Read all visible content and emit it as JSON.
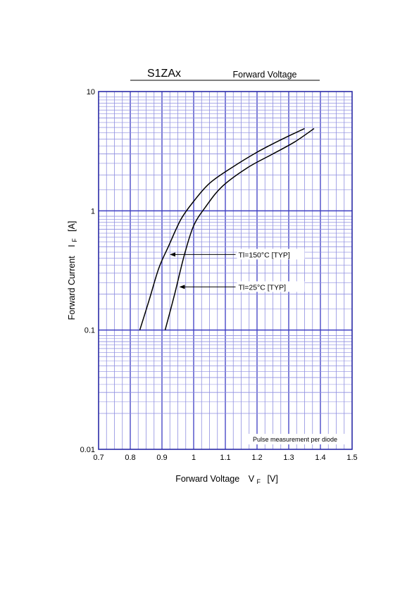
{
  "chart_data": {
    "type": "line",
    "title": "S1ZAx",
    "subtitle": "Forward Voltage",
    "xlabel": "Forward Voltage",
    "xlabel_symbol": "V",
    "xlabel_sub": "F",
    "xlabel_unit": "[V]",
    "ylabel": "Forward Current",
    "ylabel_symbol": "I",
    "ylabel_sub": "F",
    "ylabel_unit": "[A]",
    "xlim": [
      0.7,
      1.5
    ],
    "ylim": [
      0.01,
      10
    ],
    "yscale": "log",
    "grid": true,
    "x_ticks": [
      "0.7",
      "0.8",
      "0.9",
      "1",
      "1.1",
      "1.2",
      "1.3",
      "1.4",
      "1.5"
    ],
    "y_ticks": [
      "0.01",
      "0.1",
      "1",
      "10"
    ],
    "note": "Pulse measurement per diode",
    "series": [
      {
        "name": "Tl=150°C [TYP]",
        "points": [
          [
            0.83,
            0.1
          ],
          [
            0.86,
            0.18
          ],
          [
            0.89,
            0.33
          ],
          [
            0.92,
            0.5
          ],
          [
            0.96,
            0.85
          ],
          [
            1.0,
            1.2
          ],
          [
            1.05,
            1.7
          ],
          [
            1.12,
            2.3
          ],
          [
            1.2,
            3.1
          ],
          [
            1.28,
            4.0
          ],
          [
            1.35,
            4.9
          ]
        ]
      },
      {
        "name": "Tl=25°C [TYP]",
        "points": [
          [
            0.91,
            0.1
          ],
          [
            0.94,
            0.2
          ],
          [
            0.97,
            0.42
          ],
          [
            1.0,
            0.75
          ],
          [
            1.04,
            1.1
          ],
          [
            1.09,
            1.6
          ],
          [
            1.17,
            2.3
          ],
          [
            1.25,
            3.0
          ],
          [
            1.32,
            3.8
          ],
          [
            1.38,
            4.9
          ]
        ]
      }
    ],
    "annotations": [
      {
        "text": "Tl=150°C [TYP]",
        "target": [
          0.92,
          0.43
        ],
        "label_at": [
          1.15,
          0.43
        ]
      },
      {
        "text": "Tl=25°C [TYP]",
        "target": [
          0.95,
          0.23
        ],
        "label_at": [
          1.15,
          0.23
        ]
      }
    ]
  },
  "colors": {
    "frame": "#2b2ba6",
    "grid_major": "#3d3dc2",
    "grid_minor": "#8f8fe0",
    "curve": "#000000"
  }
}
